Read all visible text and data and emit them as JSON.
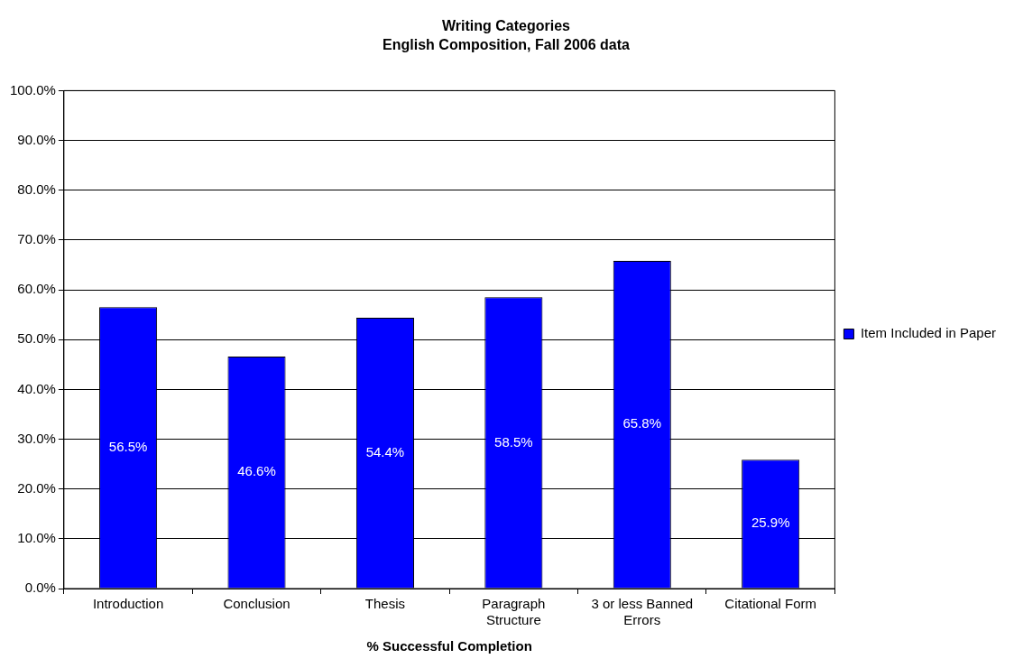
{
  "chart_data": {
    "type": "bar",
    "title": "Writing Categories",
    "subtitle": "English Composition, Fall 2006 data",
    "xlabel": "% Successful Completion",
    "categories": [
      "Introduction",
      "Conclusion",
      "Thesis",
      "Paragraph Structure",
      "3 or less Banned Errors",
      "Citational Form"
    ],
    "series": [
      {
        "name": "Item Included in Paper",
        "color": "#0000ff",
        "values": [
          56.5,
          46.6,
          54.4,
          58.5,
          65.8,
          25.9
        ],
        "value_labels": [
          "56.5%",
          "46.6%",
          "54.4%",
          "58.5%",
          "65.8%",
          "25.9%"
        ]
      }
    ],
    "ylim": [
      0,
      100
    ],
    "yticks": [
      {
        "value": 0,
        "label": "0.0%"
      },
      {
        "value": 10,
        "label": "10.0%"
      },
      {
        "value": 20,
        "label": "20.0%"
      },
      {
        "value": 30,
        "label": "30.0%"
      },
      {
        "value": 40,
        "label": "40.0%"
      },
      {
        "value": 50,
        "label": "50.0%"
      },
      {
        "value": 60,
        "label": "60.0%"
      },
      {
        "value": 70,
        "label": "70.0%"
      },
      {
        "value": 80,
        "label": "80.0%"
      },
      {
        "value": 90,
        "label": "90.0%"
      },
      {
        "value": 100,
        "label": "100.0%"
      }
    ],
    "grid": "y",
    "legend": "right"
  }
}
